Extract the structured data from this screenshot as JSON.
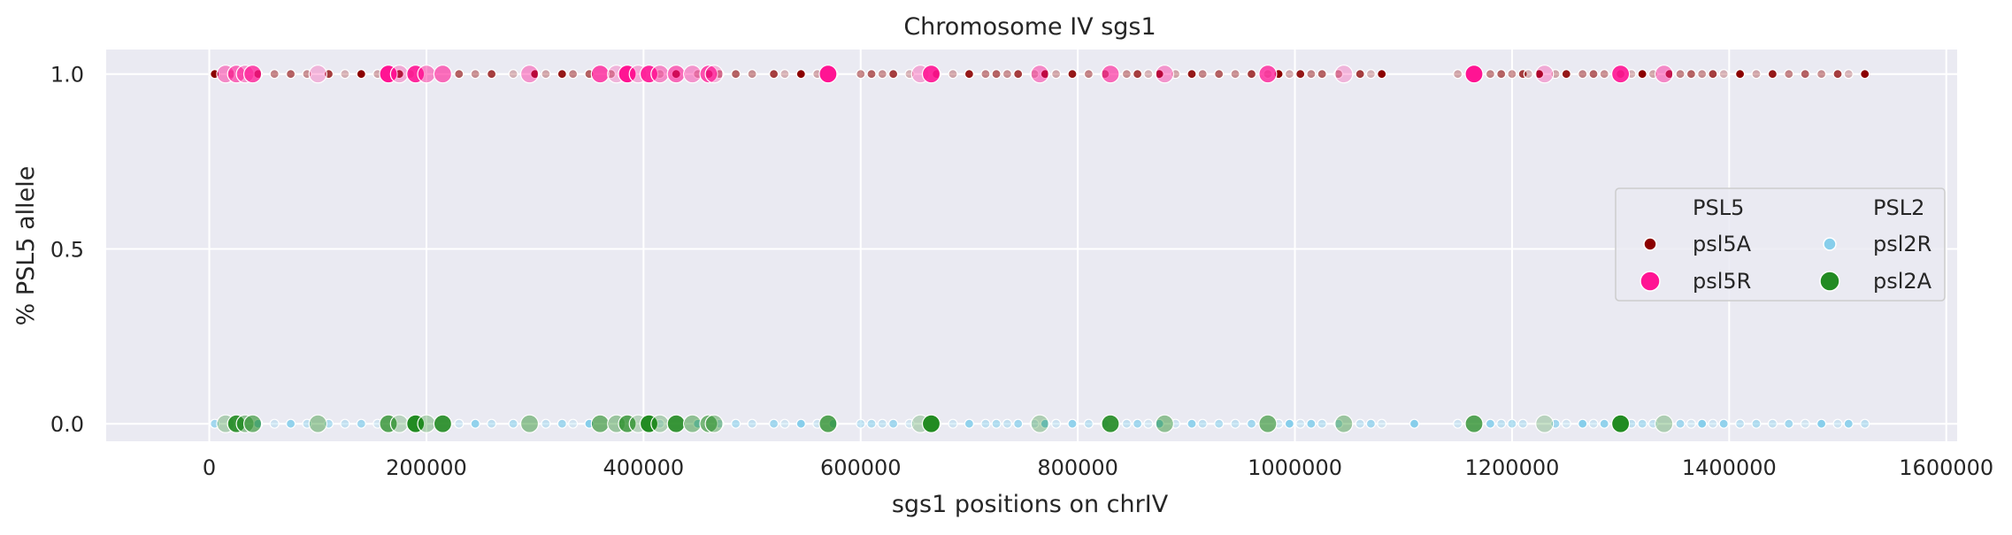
{
  "chart_data": {
    "type": "scatter",
    "title": "Chromosome IV sgs1",
    "xlabel": "sgs1 positions on chrIV",
    "ylabel": "% PSL5 allele",
    "xlim": [
      -95000,
      1610000
    ],
    "ylim": [
      -0.05,
      1.07
    ],
    "xticks": [
      0,
      200000,
      400000,
      600000,
      800000,
      1000000,
      1200000,
      1400000,
      1600000
    ],
    "xtick_labels": [
      "0",
      "200000",
      "400000",
      "600000",
      "800000",
      "1000000",
      "1200000",
      "1400000",
      "1600000"
    ],
    "yticks": [
      0.0,
      0.5,
      1.0
    ],
    "ytick_labels": [
      "0.0",
      "0.5",
      "1.0"
    ],
    "grid": true,
    "legend": {
      "placement": "center-right",
      "columns": [
        {
          "title": "PSL5",
          "entries": [
            {
              "label": "psl5A",
              "color": "#8b0000",
              "size": "small"
            },
            {
              "label": "psl5R",
              "color": "#ff1493",
              "size": "large"
            }
          ]
        },
        {
          "title": "PSL2",
          "entries": [
            {
              "label": "psl2R",
              "color": "#87ceeb",
              "size": "small"
            },
            {
              "label": "psl2A",
              "color": "#228b22",
              "size": "large"
            }
          ]
        }
      ]
    },
    "series": [
      {
        "name": "psl5A",
        "y": 1.0,
        "color": "#8b0000",
        "size": "small",
        "x": [
          5000,
          20000,
          45000,
          60000,
          75000,
          90000,
          110000,
          125000,
          140000,
          155000,
          175000,
          185000,
          230000,
          245000,
          260000,
          280000,
          300000,
          310000,
          325000,
          335000,
          350000,
          370000,
          380000,
          415000,
          430000,
          450000,
          460000,
          470000,
          485000,
          500000,
          520000,
          530000,
          545000,
          560000,
          575000,
          600000,
          610000,
          620000,
          630000,
          645000,
          670000,
          685000,
          700000,
          715000,
          725000,
          735000,
          745000,
          760000,
          770000,
          780000,
          795000,
          810000,
          825000,
          845000,
          855000,
          865000,
          875000,
          890000,
          905000,
          915000,
          930000,
          945000,
          960000,
          975000,
          985000,
          995000,
          1005000,
          1015000,
          1025000,
          1040000,
          1060000,
          1070000,
          1080000,
          1150000,
          1165000,
          1180000,
          1190000,
          1200000,
          1210000,
          1215000,
          1225000,
          1240000,
          1250000,
          1265000,
          1275000,
          1285000,
          1300000,
          1310000,
          1320000,
          1330000,
          1345000,
          1355000,
          1365000,
          1375000,
          1385000,
          1395000,
          1410000,
          1425000,
          1440000,
          1455000,
          1470000,
          1485000,
          1500000,
          1510000,
          1525000
        ]
      },
      {
        "name": "psl5R",
        "y": 1.0,
        "color": "#ff1493",
        "size": "large",
        "x": [
          15000,
          25000,
          33000,
          40000,
          100000,
          165000,
          175000,
          190000,
          200000,
          215000,
          295000,
          360000,
          375000,
          385000,
          395000,
          405000,
          415000,
          430000,
          445000,
          460000,
          465000,
          570000,
          655000,
          665000,
          765000,
          830000,
          880000,
          975000,
          1045000,
          1165000,
          1230000,
          1300000,
          1340000
        ]
      },
      {
        "name": "psl2R",
        "y": 0.0,
        "color": "#87ceeb",
        "size": "small",
        "x": [
          5000,
          20000,
          45000,
          60000,
          75000,
          90000,
          110000,
          125000,
          140000,
          155000,
          185000,
          230000,
          245000,
          260000,
          280000,
          310000,
          325000,
          335000,
          350000,
          415000,
          450000,
          470000,
          485000,
          500000,
          520000,
          530000,
          545000,
          560000,
          575000,
          600000,
          610000,
          620000,
          630000,
          645000,
          670000,
          685000,
          700000,
          715000,
          725000,
          735000,
          745000,
          760000,
          770000,
          780000,
          795000,
          810000,
          825000,
          845000,
          855000,
          865000,
          875000,
          890000,
          905000,
          915000,
          930000,
          945000,
          960000,
          985000,
          995000,
          1005000,
          1015000,
          1025000,
          1040000,
          1060000,
          1070000,
          1080000,
          1110000,
          1150000,
          1180000,
          1190000,
          1200000,
          1210000,
          1240000,
          1250000,
          1265000,
          1275000,
          1285000,
          1310000,
          1320000,
          1330000,
          1355000,
          1365000,
          1375000,
          1385000,
          1395000,
          1410000,
          1425000,
          1440000,
          1455000,
          1470000,
          1485000,
          1500000,
          1510000,
          1525000
        ]
      },
      {
        "name": "psl2A",
        "y": 0.0,
        "color": "#228b22",
        "size": "large",
        "x": [
          15000,
          25000,
          33000,
          40000,
          100000,
          165000,
          175000,
          190000,
          200000,
          215000,
          295000,
          360000,
          375000,
          385000,
          395000,
          405000,
          415000,
          430000,
          445000,
          460000,
          465000,
          570000,
          655000,
          665000,
          765000,
          830000,
          880000,
          975000,
          1045000,
          1165000,
          1230000,
          1300000,
          1340000
        ]
      }
    ]
  }
}
